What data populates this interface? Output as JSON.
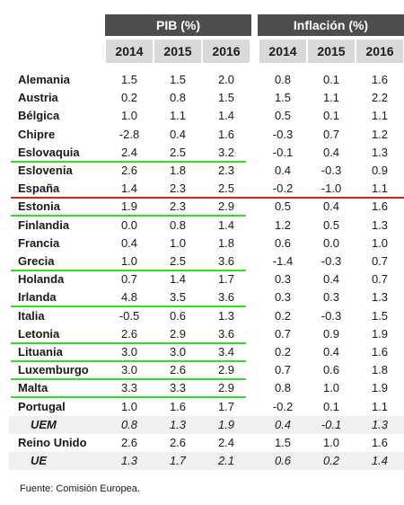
{
  "header": {
    "pib_title": "PIB (%)",
    "inflacion_title": "Inflación (%)",
    "years": [
      "2014",
      "2015",
      "2016"
    ]
  },
  "rows": [
    {
      "name": "Alemania",
      "pib": [
        "1.5",
        "1.5",
        "2.0"
      ],
      "inf": [
        "0.8",
        "0.1",
        "1.6"
      ]
    },
    {
      "name": "Austria",
      "pib": [
        "0.2",
        "0.8",
        "1.5"
      ],
      "inf": [
        "1.5",
        "1.1",
        "2.2"
      ]
    },
    {
      "name": "Bélgica",
      "pib": [
        "1.0",
        "1.1",
        "1.4"
      ],
      "inf": [
        "0.5",
        "0.1",
        "1.1"
      ]
    },
    {
      "name": "Chipre",
      "pib": [
        "-2.8",
        "0.4",
        "1.6"
      ],
      "inf": [
        "-0.3",
        "0.7",
        "1.2"
      ]
    },
    {
      "name": "Eslovaquia",
      "pib": [
        "2.4",
        "2.5",
        "3.2"
      ],
      "inf": [
        "-0.1",
        "0.4",
        "1.3"
      ]
    },
    {
      "name": "Eslovenia",
      "pib": [
        "2.6",
        "1.8",
        "2.3"
      ],
      "inf": [
        "0.4",
        "-0.3",
        "0.9"
      ]
    },
    {
      "name": "España",
      "pib": [
        "1.4",
        "2.3",
        "2.5"
      ],
      "inf": [
        "-0.2",
        "-1.0",
        "1.1"
      ]
    },
    {
      "name": "Estonia",
      "pib": [
        "1.9",
        "2.3",
        "2.9"
      ],
      "inf": [
        "0.5",
        "0.4",
        "1.6"
      ]
    },
    {
      "name": "Finlandia",
      "pib": [
        "0.0",
        "0.8",
        "1.4"
      ],
      "inf": [
        "1.2",
        "0.5",
        "1.3"
      ]
    },
    {
      "name": "Francia",
      "pib": [
        "0.4",
        "1.0",
        "1.8"
      ],
      "inf": [
        "0.6",
        "0.0",
        "1.0"
      ]
    },
    {
      "name": "Grecia",
      "pib": [
        "1.0",
        "2.5",
        "3.6"
      ],
      "inf": [
        "-1.4",
        "-0.3",
        "0.7"
      ]
    },
    {
      "name": "Holanda",
      "pib": [
        "0.7",
        "1.4",
        "1.7"
      ],
      "inf": [
        "0.3",
        "0.4",
        "0.7"
      ]
    },
    {
      "name": "Irlanda",
      "pib": [
        "4.8",
        "3.5",
        "3.6"
      ],
      "inf": [
        "0.3",
        "0.3",
        "1.3"
      ]
    },
    {
      "name": "Italia",
      "pib": [
        "-0.5",
        "0.6",
        "1.3"
      ],
      "inf": [
        "0.2",
        "-0.3",
        "1.5"
      ]
    },
    {
      "name": "Letonia",
      "pib": [
        "2.6",
        "2.9",
        "3.6"
      ],
      "inf": [
        "0.7",
        "0.9",
        "1.9"
      ]
    },
    {
      "name": "Lituania",
      "pib": [
        "3.0",
        "3.0",
        "3.4"
      ],
      "inf": [
        "0.2",
        "0.4",
        "1.6"
      ]
    },
    {
      "name": "Luxemburgo",
      "pib": [
        "3.0",
        "2.6",
        "2.9"
      ],
      "inf": [
        "0.7",
        "0.6",
        "1.8"
      ]
    },
    {
      "name": "Malta",
      "pib": [
        "3.3",
        "3.3",
        "2.9"
      ],
      "inf": [
        "0.8",
        "1.0",
        "1.9"
      ]
    },
    {
      "name": "Portugal",
      "pib": [
        "1.0",
        "1.6",
        "1.7"
      ],
      "inf": [
        "-0.2",
        "0.1",
        "1.1"
      ]
    },
    {
      "name": "UEM",
      "pib": [
        "0.8",
        "1.3",
        "1.9"
      ],
      "inf": [
        "0.4",
        "-0.1",
        "1.3"
      ],
      "italic": true
    },
    {
      "name": "Reino Unido",
      "pib": [
        "2.6",
        "2.6",
        "2.4"
      ],
      "inf": [
        "1.5",
        "1.0",
        "1.6"
      ]
    },
    {
      "name": "UE",
      "pib": [
        "1.3",
        "1.7",
        "2.1"
      ],
      "inf": [
        "0.6",
        "0.2",
        "1.4"
      ],
      "italic": true
    }
  ],
  "footer": "Fuente: Comisión Europea.",
  "colors": {
    "header_bg": "#4d4d4d",
    "year_bg": "#d9d9d9",
    "shaded_row": "#f0f0f0",
    "highlight_green": "#33dd22",
    "highlight_red": "#e02020"
  },
  "highlights": {
    "green_rows": [
      "Eslovaquia",
      "Estonia",
      "Grecia",
      "Irlanda",
      "Letonia",
      "Lituania",
      "Luxemburgo",
      "Malta"
    ],
    "red_rows": [
      "España"
    ]
  }
}
